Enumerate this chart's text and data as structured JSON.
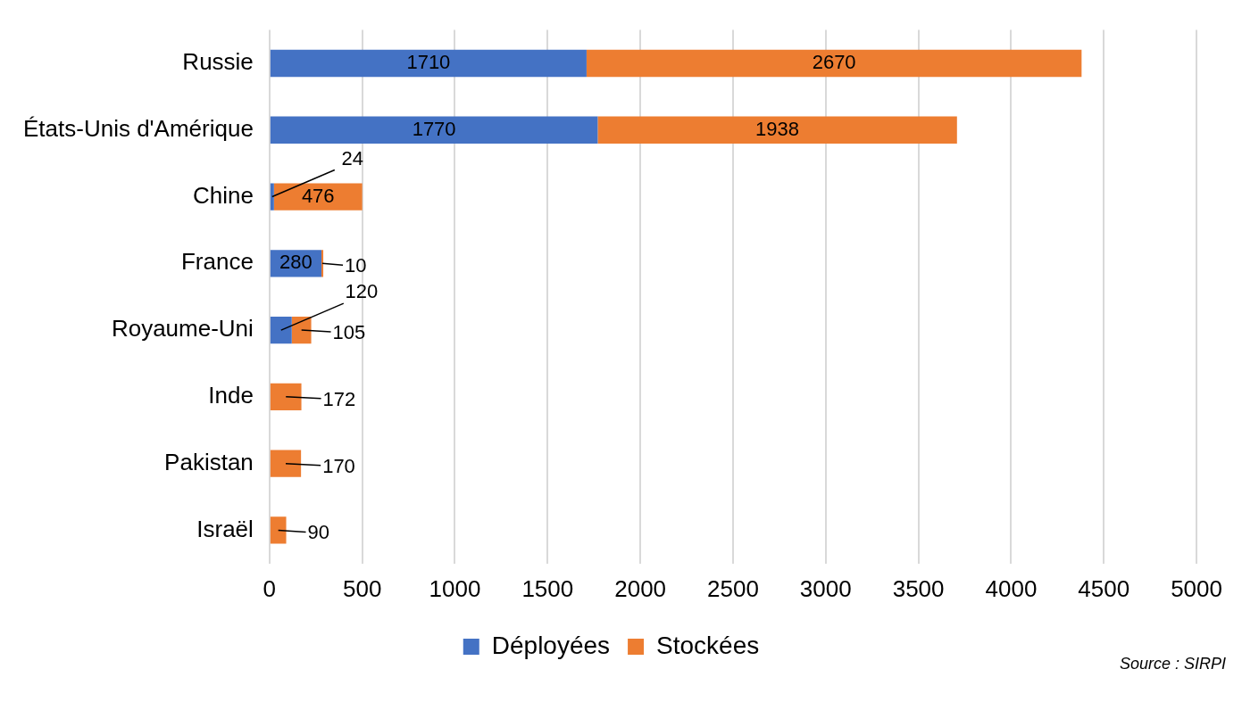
{
  "chart_data": {
    "type": "bar",
    "orientation": "horizontal",
    "stacked": true,
    "categories": [
      "Russie",
      "États-Unis d'Amérique",
      "Chine",
      "France",
      "Royaume-Uni",
      "Inde",
      "Pakistan",
      "Israël"
    ],
    "series": [
      {
        "name": "Déployées",
        "color": "#4472c4",
        "values": [
          1710,
          1770,
          24,
          280,
          120,
          0,
          0,
          0
        ],
        "value_labels": [
          "1710",
          "1770",
          "24",
          "280",
          "120",
          null,
          null,
          null
        ]
      },
      {
        "name": "Stockées",
        "color": "#ed7d31",
        "values": [
          2670,
          1938,
          476,
          10,
          105,
          172,
          170,
          90
        ],
        "value_labels": [
          "2670",
          "1938",
          "476",
          "10",
          "105",
          "172",
          "170",
          "90"
        ]
      }
    ],
    "xlim": [
      0,
      5000
    ],
    "xticks": [
      0,
      500,
      1000,
      1500,
      2000,
      2500,
      3000,
      3500,
      4000,
      4500,
      5000
    ],
    "grid": "x",
    "legend": "bottom",
    "annotations": [
      "Source : SIRPI"
    ]
  }
}
